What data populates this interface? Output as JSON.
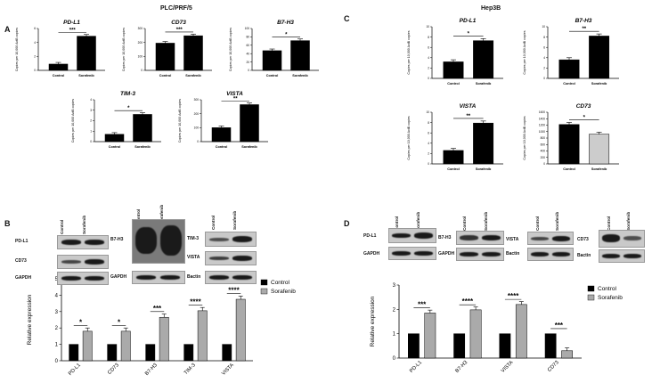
{
  "panels": {
    "A": "A",
    "B": "B",
    "C": "C",
    "D": "D"
  },
  "titles": {
    "left": "PLC/PRF/5",
    "right": "Hep3B"
  },
  "lanes": {
    "control": "Control",
    "sorafenib": "Sorafenib"
  },
  "blots": {
    "B": {
      "left_labels": [
        "PD-L1",
        "CD73",
        "GAPDH"
      ],
      "mid_labels": [
        "B7-H3",
        "GAPDH"
      ],
      "right_labels": [
        "TIM-3",
        "VISTA",
        "Bactin"
      ]
    },
    "D": {
      "left_labels": [
        "PD-L1",
        "GAPDH"
      ],
      "mid_labels": [
        "B7-H3",
        "GAPDH"
      ],
      "mid2_labels": [
        "VISTA",
        "Bactin"
      ],
      "right_labels": [
        "CD73",
        "Bactin"
      ]
    }
  },
  "chart_data": [
    {
      "id": "A-PDL1",
      "type": "bar",
      "title": "PD-L1",
      "ylabel": "Copies per 10,000 ActB copies",
      "categories": [
        "Control",
        "Sorafenib"
      ],
      "values": [
        0.9,
        4.9
      ],
      "ylim": [
        0,
        6
      ],
      "yticks": [
        0,
        2,
        4,
        6
      ],
      "significance": "***",
      "colors": [
        "#000000",
        "#000000"
      ]
    },
    {
      "id": "A-CD73",
      "type": "bar",
      "title": "CD73",
      "ylabel": "Copies per 10,000 ActB copies",
      "categories": [
        "Control",
        "Sorafenib"
      ],
      "values": [
        195,
        248
      ],
      "ylim": [
        0,
        300
      ],
      "yticks": [
        0,
        100,
        200,
        300
      ],
      "significance": "***",
      "colors": [
        "#000000",
        "#000000"
      ]
    },
    {
      "id": "A-B7H3",
      "type": "bar",
      "title": "B7-H3",
      "ylabel": "Copies per 10,000 ActB copies",
      "categories": [
        "Control",
        "Sorafenib"
      ],
      "values": [
        47,
        71
      ],
      "ylim": [
        0,
        100
      ],
      "yticks": [
        0,
        20,
        40,
        60,
        80,
        100
      ],
      "significance": "*",
      "colors": [
        "#000000",
        "#000000"
      ]
    },
    {
      "id": "A-TIM3",
      "type": "bar",
      "title": "TIM-3",
      "ylabel": "Copies per 10,000 ActB copies",
      "categories": [
        "Control",
        "Sorafenib"
      ],
      "values": [
        0.7,
        2.6
      ],
      "ylim": [
        0,
        4
      ],
      "yticks": [
        0,
        1,
        2,
        3,
        4
      ],
      "significance": "*",
      "colors": [
        "#000000",
        "#000000"
      ]
    },
    {
      "id": "A-VISTA",
      "type": "bar",
      "title": "VISTA",
      "ylabel": "Copies per 10,000 ActB copies",
      "categories": [
        "Control",
        "Sorafenib"
      ],
      "values": [
        100,
        265
      ],
      "ylim": [
        0,
        300
      ],
      "yticks": [
        0,
        100,
        200,
        300
      ],
      "significance": "**",
      "colors": [
        "#000000",
        "#000000"
      ]
    },
    {
      "id": "B-quant",
      "type": "bar",
      "ylabel": "Relative expression",
      "categories": [
        "PD-L1",
        "CD73",
        "B7-H3",
        "TIM-3",
        "VISTA"
      ],
      "series": [
        {
          "name": "Control",
          "values": [
            1,
            1,
            1,
            1,
            1
          ],
          "color": "#000000"
        },
        {
          "name": "Sorafenib",
          "values": [
            1.8,
            1.8,
            2.65,
            3.05,
            3.75
          ],
          "color": "#aaaaaa"
        }
      ],
      "ylim": [
        0,
        5
      ],
      "yticks": [
        0,
        1,
        2,
        3,
        4,
        5
      ],
      "significance": [
        "*",
        "*",
        "***",
        "****",
        "****"
      ],
      "legend": "right"
    },
    {
      "id": "C-PDL1",
      "type": "bar",
      "title": "PD-L1",
      "ylabel": "Copies per 10,000 ActB copies",
      "categories": [
        "Control",
        "Sorafenib"
      ],
      "values": [
        3.2,
        7.3
      ],
      "ylim": [
        0,
        10
      ],
      "yticks": [
        0,
        2,
        4,
        6,
        8,
        10
      ],
      "significance": "*",
      "colors": [
        "#000000",
        "#000000"
      ]
    },
    {
      "id": "C-B7H3",
      "type": "bar",
      "title": "B7-H3",
      "ylabel": "Copies per 10,000 ActB copies",
      "categories": [
        "Control",
        "Sorafenib"
      ],
      "values": [
        3.6,
        8.2
      ],
      "ylim": [
        0,
        10
      ],
      "yticks": [
        0,
        2,
        4,
        6,
        8,
        10
      ],
      "significance": "**",
      "colors": [
        "#000000",
        "#000000"
      ]
    },
    {
      "id": "C-VISTA",
      "type": "bar",
      "title": "VISTA",
      "ylabel": "Copies per 10,000 ActB copies",
      "categories": [
        "Control",
        "Sorafenib"
      ],
      "values": [
        2.6,
        7.9
      ],
      "ylim": [
        0,
        10
      ],
      "yticks": [
        0,
        2,
        4,
        6,
        8,
        10
      ],
      "significance": "**",
      "colors": [
        "#000000",
        "#000000"
      ]
    },
    {
      "id": "C-CD73",
      "type": "bar",
      "title": "CD73",
      "ylabel": "Copies per 10,000 ActB copies",
      "categories": [
        "Control",
        "Sorafenib"
      ],
      "values": [
        1220,
        920
      ],
      "ylim": [
        0,
        1600
      ],
      "yticks": [
        0,
        200,
        400,
        600,
        800,
        1000,
        1200,
        1400,
        1600
      ],
      "significance": "*",
      "colors": [
        "#000000",
        "#cccccc"
      ]
    },
    {
      "id": "D-quant",
      "type": "bar",
      "ylabel": "Relative expression",
      "categories": [
        "PD-L1",
        "B7-H3",
        "VISTA",
        "CD73"
      ],
      "series": [
        {
          "name": "Control",
          "values": [
            1,
            1,
            1,
            1
          ],
          "color": "#000000"
        },
        {
          "name": "Sorafenib",
          "values": [
            1.85,
            1.98,
            2.2,
            0.3
          ],
          "color": "#aaaaaa"
        }
      ],
      "ylim": [
        0,
        3
      ],
      "yticks": [
        0,
        1,
        2,
        3
      ],
      "significance": [
        "***",
        "****",
        "****",
        "***"
      ],
      "legend": "right"
    }
  ]
}
